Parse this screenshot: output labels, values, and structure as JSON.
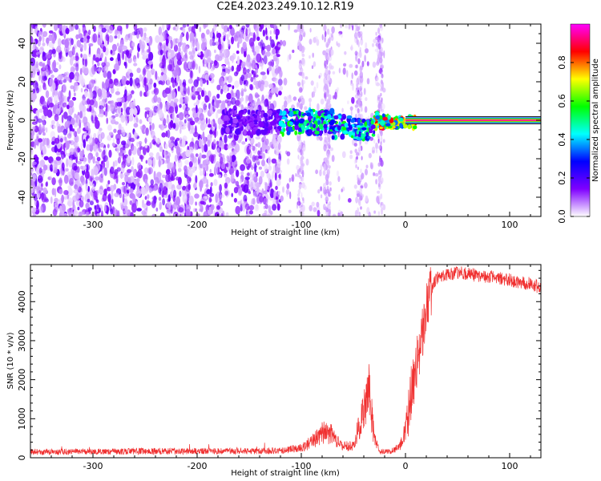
{
  "title": "C2E4.2023.249.10.12.R19",
  "colors": {
    "snr_line": "#f03030",
    "axis": "#000000"
  },
  "chart_data": [
    {
      "type": "heatmap",
      "xlabel": "Height of straight line (km)",
      "ylabel": "Frequency (Hz)",
      "xlim": [
        -360,
        130
      ],
      "ylim": [
        -50,
        50
      ],
      "x_ticks": [
        -300,
        -200,
        -100,
        0,
        100
      ],
      "y_ticks": [
        -40,
        -20,
        0,
        20,
        40
      ],
      "colorbar": {
        "label": "Normalized spectral amplitude",
        "range": [
          0,
          1
        ],
        "ticks": [
          0.0,
          0.2,
          0.4,
          0.6,
          0.8
        ],
        "colormap": [
          "#ffffff",
          "#7f00ff",
          "#0000ff",
          "#00ffff",
          "#00ff00",
          "#ffff00",
          "#ff0000",
          "#ff00ff"
        ]
      },
      "features": [
        {
          "x_range": [
            -360,
            -120
          ],
          "freq_range": [
            -50,
            50
          ],
          "amplitude": 0.12,
          "pattern": "broadband noise"
        },
        {
          "x_range": [
            -120,
            -20
          ],
          "freq_range": [
            -50,
            50
          ],
          "amplitude": 0.05,
          "pattern": "sparse noise with vertical streaks"
        },
        {
          "x_range": [
            -120,
            -25
          ],
          "freq_center": 0,
          "amplitude": 0.5,
          "pattern": "narrowing signal band"
        },
        {
          "x_range": [
            0,
            130
          ],
          "freq_center": 0,
          "amplitude": 0.95,
          "pattern": "strong narrow line at 0 Hz"
        }
      ]
    },
    {
      "type": "line",
      "xlabel": "Height of straight line (km)",
      "ylabel": "SNR (10 * v/v)",
      "xlim": [
        -360,
        130
      ],
      "ylim": [
        0,
        4950
      ],
      "x_ticks": [
        -300,
        -200,
        -100,
        0,
        100
      ],
      "y_ticks": [
        0,
        1000,
        2000,
        3000,
        4000
      ],
      "series": [
        {
          "x": [
            -360,
            -300,
            -200,
            -150,
            -120,
            -100,
            -90,
            -80,
            -70,
            -60,
            -50,
            -45,
            -40,
            -35,
            -30,
            -25,
            -20,
            -10,
            -5,
            0,
            5,
            10,
            15,
            20,
            25,
            30,
            40,
            50,
            60,
            80,
            100,
            120,
            130
          ],
          "y": [
            150,
            160,
            170,
            170,
            180,
            250,
            400,
            650,
            600,
            300,
            300,
            800,
            1200,
            1700,
            500,
            150,
            150,
            200,
            300,
            800,
            1600,
            2300,
            3000,
            3800,
            4300,
            4600,
            4700,
            4750,
            4700,
            4650,
            4550,
            4450,
            4350
          ]
        }
      ]
    }
  ]
}
